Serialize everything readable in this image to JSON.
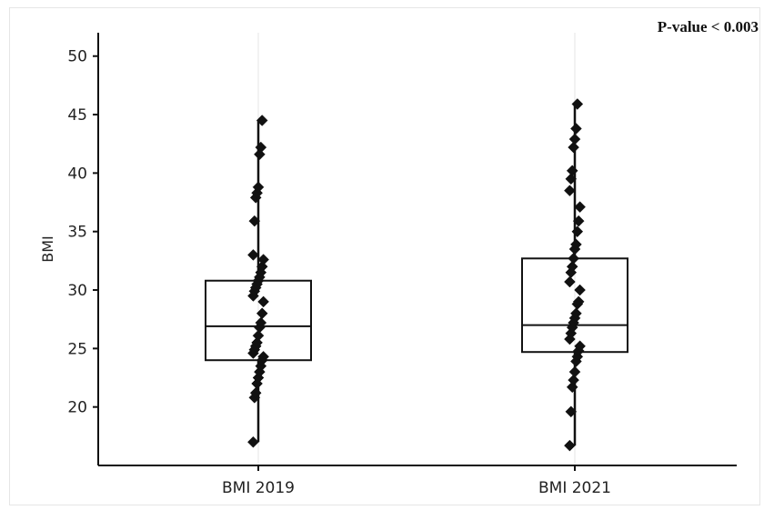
{
  "annotation": "P-value < 0.003",
  "chart_data": {
    "type": "boxplot",
    "ylabel": "BMI",
    "ylim": [
      15,
      52
    ],
    "yticks": [
      20,
      25,
      30,
      35,
      40,
      45,
      50
    ],
    "categories": [
      "BMI 2019",
      "BMI 2021"
    ],
    "boxes": [
      {
        "category": "BMI 2019",
        "whisker_low": 17.0,
        "q1": 24.0,
        "median": 26.9,
        "q3": 30.8,
        "whisker_high": 44.5
      },
      {
        "category": "BMI 2021",
        "whisker_low": 16.7,
        "q1": 24.7,
        "median": 27.0,
        "q3": 32.7,
        "whisker_high": 45.9
      }
    ],
    "points": [
      {
        "category": "BMI 2019",
        "values": [
          17.0,
          20.8,
          21.2,
          22.0,
          22.5,
          23.0,
          23.5,
          24.0,
          24.3,
          24.6,
          24.9,
          25.2,
          25.5,
          26.1,
          26.8,
          27.2,
          28.0,
          29.0,
          29.5,
          29.9,
          30.2,
          30.5,
          30.8,
          31.1,
          31.5,
          32.0,
          32.6,
          33.0,
          35.9,
          37.9,
          38.3,
          38.8,
          41.6,
          42.2,
          44.5
        ]
      },
      {
        "category": "BMI 2021",
        "values": [
          16.7,
          19.6,
          21.7,
          22.3,
          23.0,
          23.9,
          24.3,
          24.8,
          25.2,
          25.8,
          26.3,
          26.8,
          27.2,
          27.6,
          28.0,
          28.8,
          29.0,
          30.0,
          30.7,
          31.5,
          32.0,
          32.7,
          33.5,
          33.9,
          35.0,
          35.9,
          37.1,
          38.5,
          39.5,
          40.2,
          42.2,
          42.9,
          43.8,
          45.9
        ]
      }
    ]
  }
}
